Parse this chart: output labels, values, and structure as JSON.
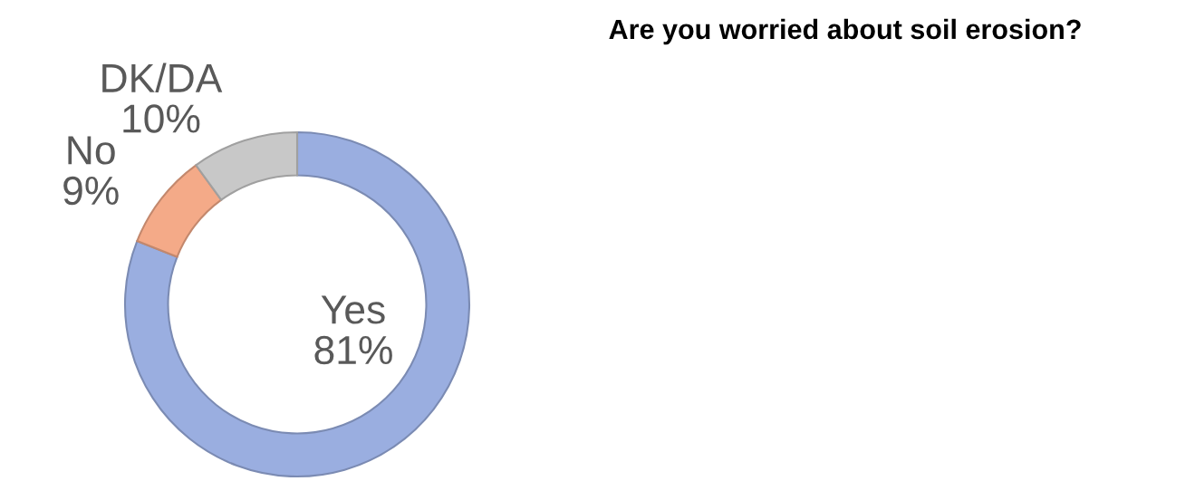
{
  "chart_data": {
    "type": "donut",
    "title": "Are you worried about soil erosion?",
    "categories": [
      "Yes",
      "No",
      "DK/DA"
    ],
    "values": [
      81,
      9,
      10
    ],
    "colors": [
      "#9aaee0",
      "#f4aa88",
      "#c8c8c8"
    ],
    "value_labels": [
      "81%",
      "9%",
      "10%"
    ]
  }
}
